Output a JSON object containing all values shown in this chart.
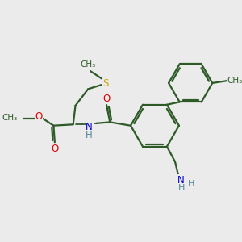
{
  "background_color": "#ebebeb",
  "bond_color": "#2d5a27",
  "S_color": "#ccaa00",
  "O_color": "#dd0000",
  "N_color": "#0000cc",
  "NH2_color": "#558899",
  "figsize": [
    3.0,
    3.0
  ],
  "dpi": 100,
  "xlim": [
    0,
    10
  ],
  "ylim": [
    0,
    10
  ]
}
